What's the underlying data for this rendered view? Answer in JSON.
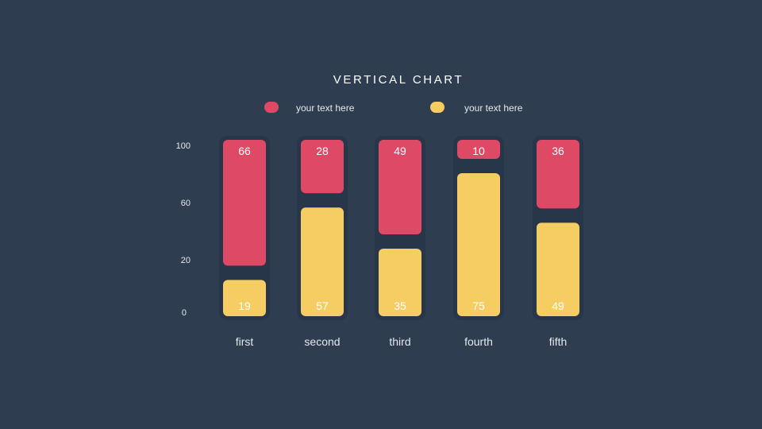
{
  "chart_data": {
    "type": "bar",
    "stacked": true,
    "title": "VERTICAL CHART",
    "categories": [
      "first",
      "second",
      "third",
      "fourth",
      "fifth"
    ],
    "series": [
      {
        "name": "your text here",
        "color": "#de4a66",
        "values": [
          66,
          28,
          49,
          10,
          36
        ]
      },
      {
        "name": "your text here",
        "color": "#f5cd62",
        "values": [
          19,
          57,
          35,
          75,
          49
        ]
      }
    ],
    "y_ticks": [
      "0",
      "20",
      "60",
      "100"
    ],
    "legend_position": "top"
  },
  "colors": {
    "background": "#2e3d4f",
    "track": "#28364a"
  }
}
